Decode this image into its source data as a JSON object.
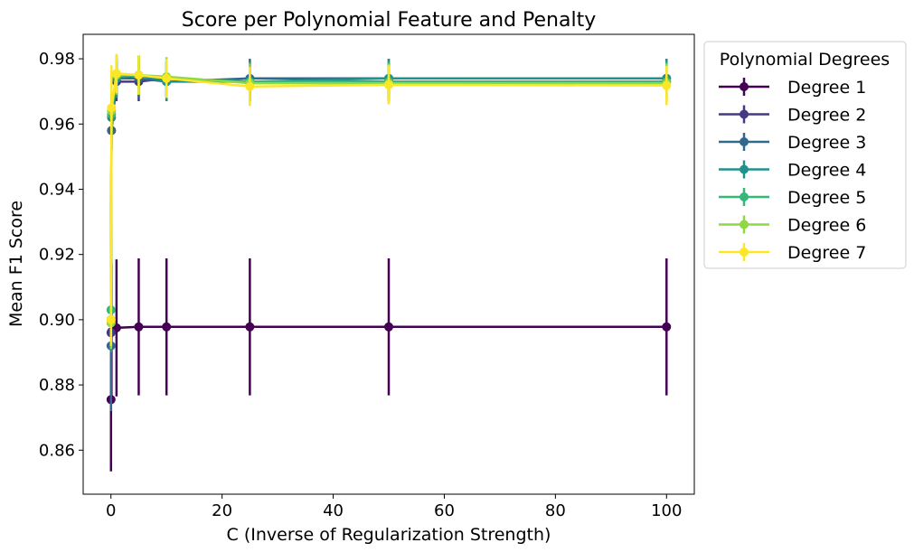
{
  "chart_data": {
    "type": "line",
    "title": "Score per Polynomial Feature and Penalty",
    "xlabel": "C (Inverse of Regularization Strength)",
    "ylabel": "Mean F1 Score",
    "xlim": [
      -5,
      105
    ],
    "ylim": [
      0.8465,
      0.9875
    ],
    "xticks": [
      0,
      20,
      40,
      60,
      80,
      100
    ],
    "xtick_labels": [
      "0",
      "20",
      "40",
      "60",
      "80",
      "100"
    ],
    "yticks": [
      0.86,
      0.88,
      0.9,
      0.92,
      0.94,
      0.96,
      0.98
    ],
    "ytick_labels": [
      "0.86",
      "0.88",
      "0.90",
      "0.92",
      "0.94",
      "0.96",
      "0.98"
    ],
    "grid": false,
    "legend_title": "Polynomial Degrees",
    "legend_position": "outside-right",
    "x": [
      0.01,
      0.1,
      1,
      5,
      10,
      25,
      50,
      100
    ],
    "series": [
      {
        "name": "Degree 1",
        "color": "#440154",
        "values": [
          0.8755,
          0.8963,
          0.8975,
          0.8978,
          0.8978,
          0.8978,
          0.8978,
          0.8978
        ],
        "errors": [
          0.022,
          0.021,
          0.021,
          0.021,
          0.021,
          0.021,
          0.021,
          0.021
        ]
      },
      {
        "name": "Degree 2",
        "color": "#443983",
        "values": [
          0.896,
          0.958,
          0.973,
          0.973,
          0.974,
          0.973,
          0.973,
          0.973
        ],
        "errors": [
          0.01,
          0.006,
          0.006,
          0.006,
          0.006,
          0.006,
          0.006,
          0.006
        ]
      },
      {
        "name": "Degree 3",
        "color": "#31688e",
        "values": [
          0.892,
          0.958,
          0.974,
          0.974,
          0.973,
          0.974,
          0.974,
          0.974
        ],
        "errors": [
          0.02,
          0.006,
          0.006,
          0.006,
          0.006,
          0.006,
          0.006,
          0.006
        ]
      },
      {
        "name": "Degree 4",
        "color": "#21918c",
        "values": [
          0.9,
          0.962,
          0.974,
          0.975,
          0.973,
          0.973,
          0.974,
          0.974
        ],
        "errors": [
          0.01,
          0.006,
          0.006,
          0.006,
          0.006,
          0.006,
          0.006,
          0.006
        ]
      },
      {
        "name": "Degree 5",
        "color": "#35b779",
        "values": [
          0.903,
          0.963,
          0.975,
          0.975,
          0.974,
          0.973,
          0.973,
          0.973
        ],
        "errors": [
          0.008,
          0.006,
          0.006,
          0.006,
          0.006,
          0.006,
          0.006,
          0.006
        ]
      },
      {
        "name": "Degree 6",
        "color": "#90d743",
        "values": [
          0.899,
          0.964,
          0.975,
          0.975,
          0.9745,
          0.9725,
          0.9725,
          0.9725
        ],
        "errors": [
          0.008,
          0.006,
          0.006,
          0.006,
          0.006,
          0.006,
          0.006,
          0.006
        ]
      },
      {
        "name": "Degree 7",
        "color": "#fde725",
        "values": [
          0.9,
          0.965,
          0.9755,
          0.975,
          0.974,
          0.9715,
          0.972,
          0.9718
        ],
        "errors": [
          0.008,
          0.013,
          0.006,
          0.006,
          0.006,
          0.006,
          0.006,
          0.006
        ]
      }
    ]
  }
}
